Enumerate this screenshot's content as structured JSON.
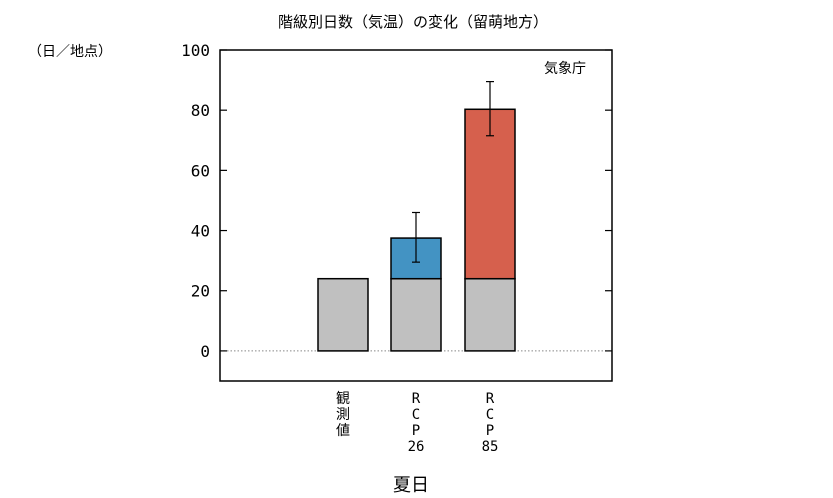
{
  "chart_data": {
    "type": "bar",
    "title": "階級別日数（気温）の変化（留萌地方）",
    "ylabel": "（日／地点）",
    "xlabel": "夏日",
    "source": "気象庁",
    "ylim": [
      -10,
      100
    ],
    "yticks": [
      0,
      20,
      40,
      60,
      80,
      100
    ],
    "categories": [
      "観測値",
      "RCP26",
      "RCP85"
    ],
    "category_labels": [
      [
        "観",
        "測",
        "値"
      ],
      [
        "R",
        "C",
        "P",
        "26"
      ],
      [
        "R",
        "C",
        "P",
        "85"
      ]
    ],
    "series": [
      {
        "values": [
          24,
          24,
          24
        ]
      },
      {
        "values": [
          0,
          13.5,
          56.3
        ]
      }
    ],
    "totals": [
      24,
      37.5,
      80.3
    ],
    "error_bars": [
      null,
      [
        29.5,
        46
      ],
      [
        71.5,
        89.5
      ]
    ],
    "colors": {
      "base": "#c0c0c0",
      "rcp26": "#4393c3",
      "rcp85": "#d6604d",
      "zero_line": "#888888"
    },
    "grid": false,
    "legend": "none"
  }
}
